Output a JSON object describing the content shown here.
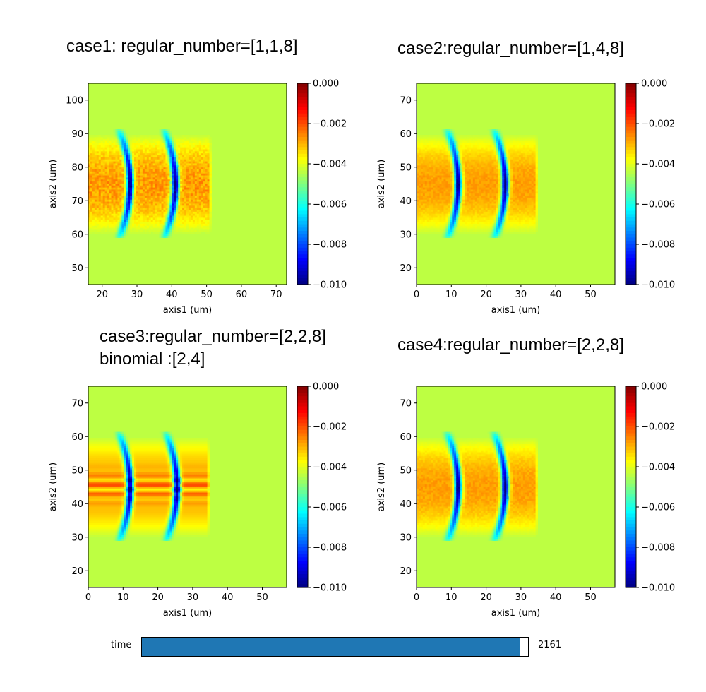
{
  "chart_data": [
    {
      "type": "heatmap",
      "title": "case1: regular_number=[1,1,8]",
      "xlabel": "axis1 (um)",
      "ylabel": "axis2 (um)",
      "xlim": [
        16,
        73
      ],
      "ylim": [
        45,
        105
      ],
      "xticks": [
        20,
        30,
        40,
        50,
        60,
        70
      ],
      "yticks": [
        50,
        60,
        70,
        80,
        90,
        100
      ],
      "colormap": "jet",
      "clim": [
        -0.01,
        0.0
      ],
      "colorbar_ticks": [
        "0.000",
        "−0.002",
        "−0.004",
        "−0.006",
        "−0.008",
        "−0.010"
      ],
      "background_value": -0.0044,
      "pulse": {
        "x_start": 16,
        "x_end": 51,
        "y_center": 75,
        "half_width": 15,
        "blue_bands_x": [
          28,
          41
        ],
        "noise": "moderate"
      }
    },
    {
      "type": "heatmap",
      "title": "case2:regular_number=[1,4,8]",
      "xlabel": "axis1 (um)",
      "ylabel": "axis2 (um)",
      "xlim": [
        0,
        57
      ],
      "ylim": [
        15,
        75
      ],
      "xticks": [
        0,
        10,
        20,
        30,
        40,
        50
      ],
      "yticks": [
        20,
        30,
        40,
        50,
        60,
        70
      ],
      "colormap": "jet",
      "clim": [
        -0.01,
        0.0
      ],
      "colorbar_ticks": [
        "0.000",
        "−0.002",
        "−0.004",
        "−0.006",
        "−0.008",
        "−0.010"
      ],
      "background_value": -0.0044,
      "pulse": {
        "x_start": 0,
        "x_end": 34.5,
        "y_center": 45,
        "half_width": 15,
        "blue_bands_x": [
          12,
          25.5
        ],
        "noise": "low"
      }
    },
    {
      "type": "heatmap",
      "title": "case3:regular_number=[2,2,8]",
      "subtitle": "binomial :[2,4]",
      "xlabel": "axis1 (um)",
      "ylabel": "axis2 (um)",
      "xlim": [
        0,
        57
      ],
      "ylim": [
        15,
        75
      ],
      "xticks": [
        0,
        10,
        20,
        30,
        40,
        50
      ],
      "yticks": [
        20,
        30,
        40,
        50,
        60,
        70
      ],
      "colormap": "jet",
      "clim": [
        -0.01,
        0.0
      ],
      "colorbar_ticks": [
        "0.000",
        "−0.002",
        "−0.004",
        "−0.006",
        "−0.008",
        "−0.010"
      ],
      "background_value": -0.0044,
      "pulse": {
        "x_start": 0,
        "x_end": 34.5,
        "y_center": 45,
        "half_width": 15,
        "blue_bands_x": [
          12,
          25.5
        ],
        "noise": "stripes"
      }
    },
    {
      "type": "heatmap",
      "title": "case4:regular_number=[2,2,8]",
      "xlabel": "axis1 (um)",
      "ylabel": "axis2 (um)",
      "xlim": [
        0,
        57
      ],
      "ylim": [
        15,
        75
      ],
      "xticks": [
        0,
        10,
        20,
        30,
        40,
        50
      ],
      "yticks": [
        20,
        30,
        40,
        50,
        60,
        70
      ],
      "colormap": "jet",
      "clim": [
        -0.01,
        0.0
      ],
      "colorbar_ticks": [
        "0.000",
        "−0.002",
        "−0.004",
        "−0.006",
        "−0.008",
        "−0.010"
      ],
      "background_value": -0.0044,
      "pulse": {
        "x_start": 0,
        "x_end": 34.5,
        "y_center": 45,
        "half_width": 15,
        "blue_bands_x": [
          12,
          25.5
        ],
        "noise": "low"
      }
    }
  ],
  "slider": {
    "label": "time",
    "value": "2161",
    "fill_fraction": 0.978,
    "color": "#1f77b4"
  }
}
